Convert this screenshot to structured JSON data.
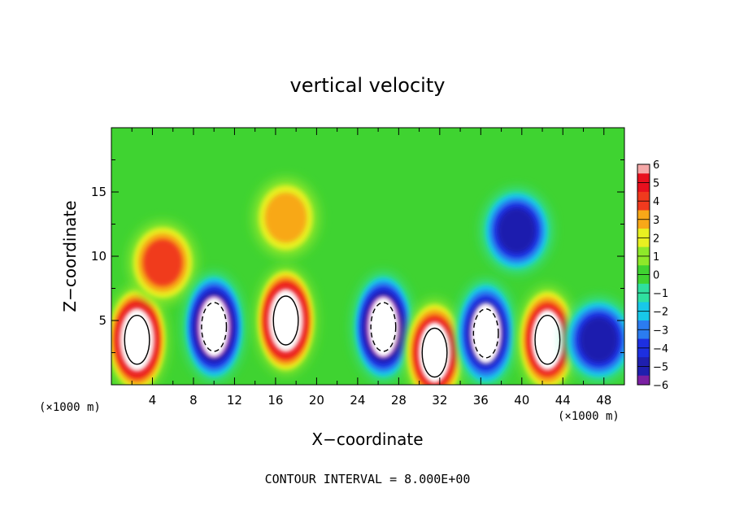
{
  "chart_data": {
    "type": "heatmap",
    "title": "vertical velocity",
    "xlabel": "X−coordinate",
    "ylabel": "Z−coordinate",
    "x_unit": "(×1000 m)",
    "y_unit": "(×1000 m)",
    "xlim": [
      0,
      50
    ],
    "ylim": [
      0,
      20
    ],
    "x_ticks": [
      4,
      8,
      12,
      16,
      20,
      24,
      28,
      32,
      36,
      40,
      44,
      48
    ],
    "y_ticks": [
      5,
      10,
      15
    ],
    "colorbar": {
      "ticks": [
        6,
        5,
        4,
        3,
        2,
        1,
        0,
        -1,
        -2,
        -3,
        -4,
        -5,
        -6
      ],
      "tick_labels": [
        "6",
        "5",
        "4",
        "3",
        "2",
        "1",
        "0",
        "−1",
        "−2",
        "−3",
        "−4",
        "−5",
        "−6"
      ],
      "range": [
        -6,
        6
      ]
    },
    "footer": "CONTOUR INTERVAL = 8.000E+00",
    "features": [
      {
        "x": 2.5,
        "z": 3.5,
        "w": 7
      },
      {
        "x": 5,
        "z": 9.5,
        "w": 4
      },
      {
        "x": 10,
        "z": 4.5,
        "w": -7
      },
      {
        "x": 17,
        "z": 5,
        "w": 7
      },
      {
        "x": 17,
        "z": 13,
        "w": 3
      },
      {
        "x": 26.5,
        "z": 4.5,
        "w": -7
      },
      {
        "x": 31.5,
        "z": 2.5,
        "w": 6
      },
      {
        "x": 36.5,
        "z": 4,
        "w": -6
      },
      {
        "x": 39.5,
        "z": 12,
        "w": -4.5
      },
      {
        "x": 42.5,
        "z": 3.5,
        "w": 6
      },
      {
        "x": 47.5,
        "z": 3.5,
        "w": -5
      }
    ]
  }
}
